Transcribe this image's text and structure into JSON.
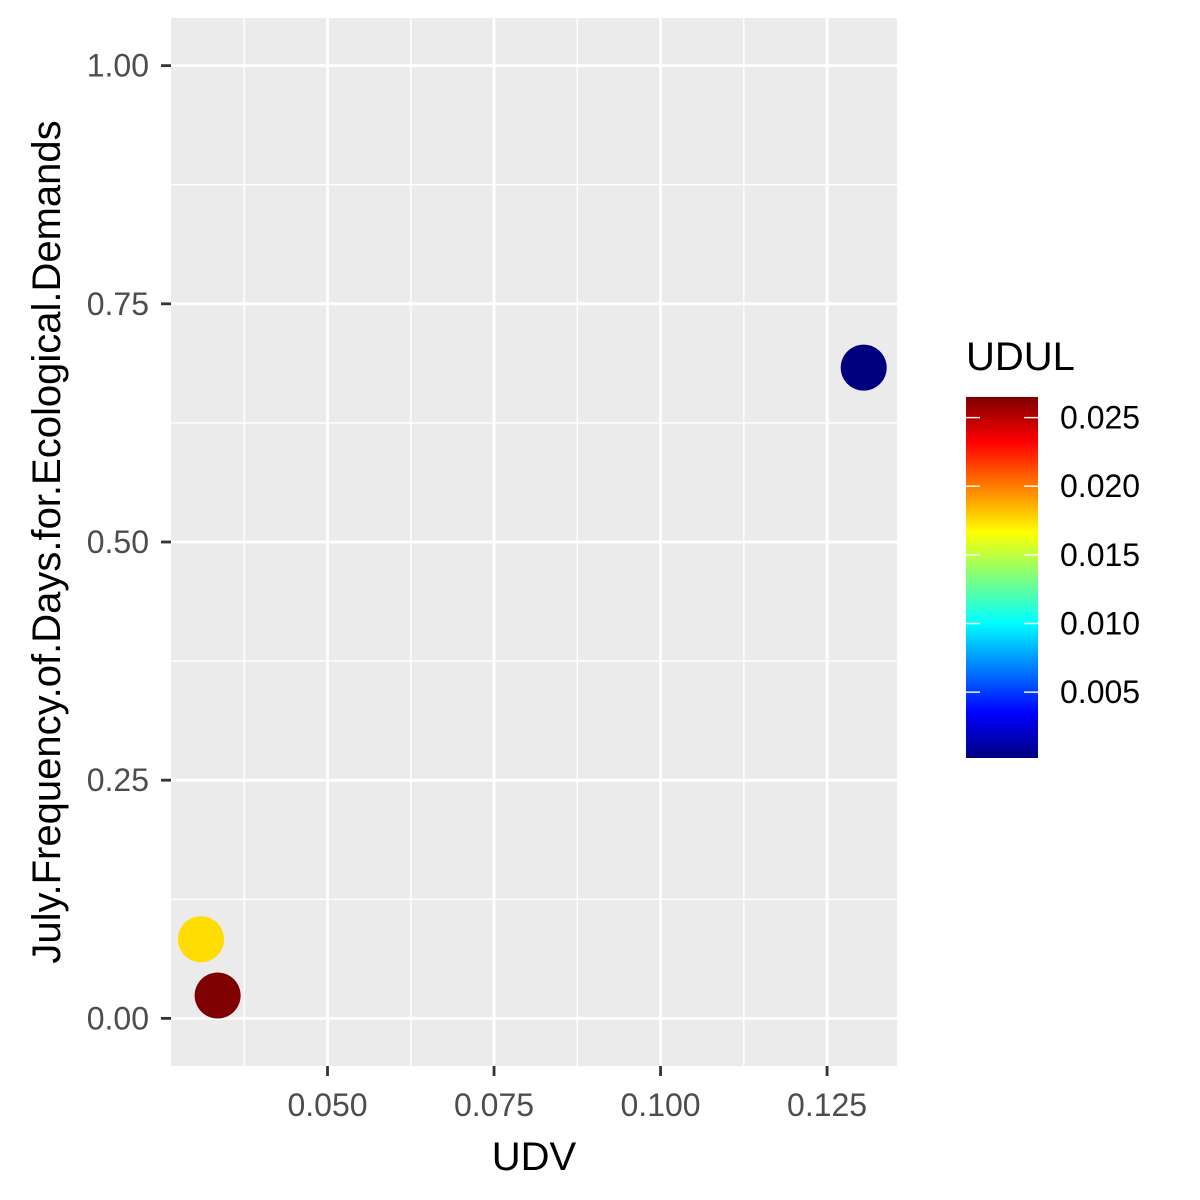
{
  "chart_data": {
    "type": "scatter",
    "title": "",
    "xlabel": "UDV",
    "ylabel": "July.Frequency.of.Days.for.Ecological.Demands",
    "xlim": [
      0.0265,
      0.1355
    ],
    "ylim": [
      -0.05,
      1.05
    ],
    "x_ticks": [
      0.05,
      0.075,
      0.1,
      0.125
    ],
    "x_tick_labels": [
      "0.050",
      "0.075",
      "0.100",
      "0.125"
    ],
    "y_ticks": [
      0.0,
      0.25,
      0.5,
      0.75,
      1.0
    ],
    "y_tick_labels": [
      "0.00",
      "0.25",
      "0.50",
      "0.75",
      "1.00"
    ],
    "grid": true,
    "points": [
      {
        "x": 0.1305,
        "y": 0.683,
        "color_value": 0.0002
      },
      {
        "x": 0.031,
        "y": 0.083,
        "color_value": 0.0175
      },
      {
        "x": 0.0335,
        "y": 0.024,
        "color_value": 0.0265
      }
    ],
    "color_scale": {
      "title": "UDUL",
      "range": [
        0.0002,
        0.0265
      ],
      "ticks": [
        0.005,
        0.01,
        0.015,
        0.02,
        0.025
      ],
      "tick_labels": [
        "0.005",
        "0.010",
        "0.015",
        "0.020",
        "0.025"
      ],
      "colors": [
        "#00007f",
        "#0000ff",
        "#007fff",
        "#00ffff",
        "#7fff7f",
        "#ffff00",
        "#ff7f00",
        "#ff0000",
        "#7f0000"
      ],
      "placement": "right"
    },
    "panel_background": "#ebebeb",
    "grid_color": "#ffffff"
  }
}
